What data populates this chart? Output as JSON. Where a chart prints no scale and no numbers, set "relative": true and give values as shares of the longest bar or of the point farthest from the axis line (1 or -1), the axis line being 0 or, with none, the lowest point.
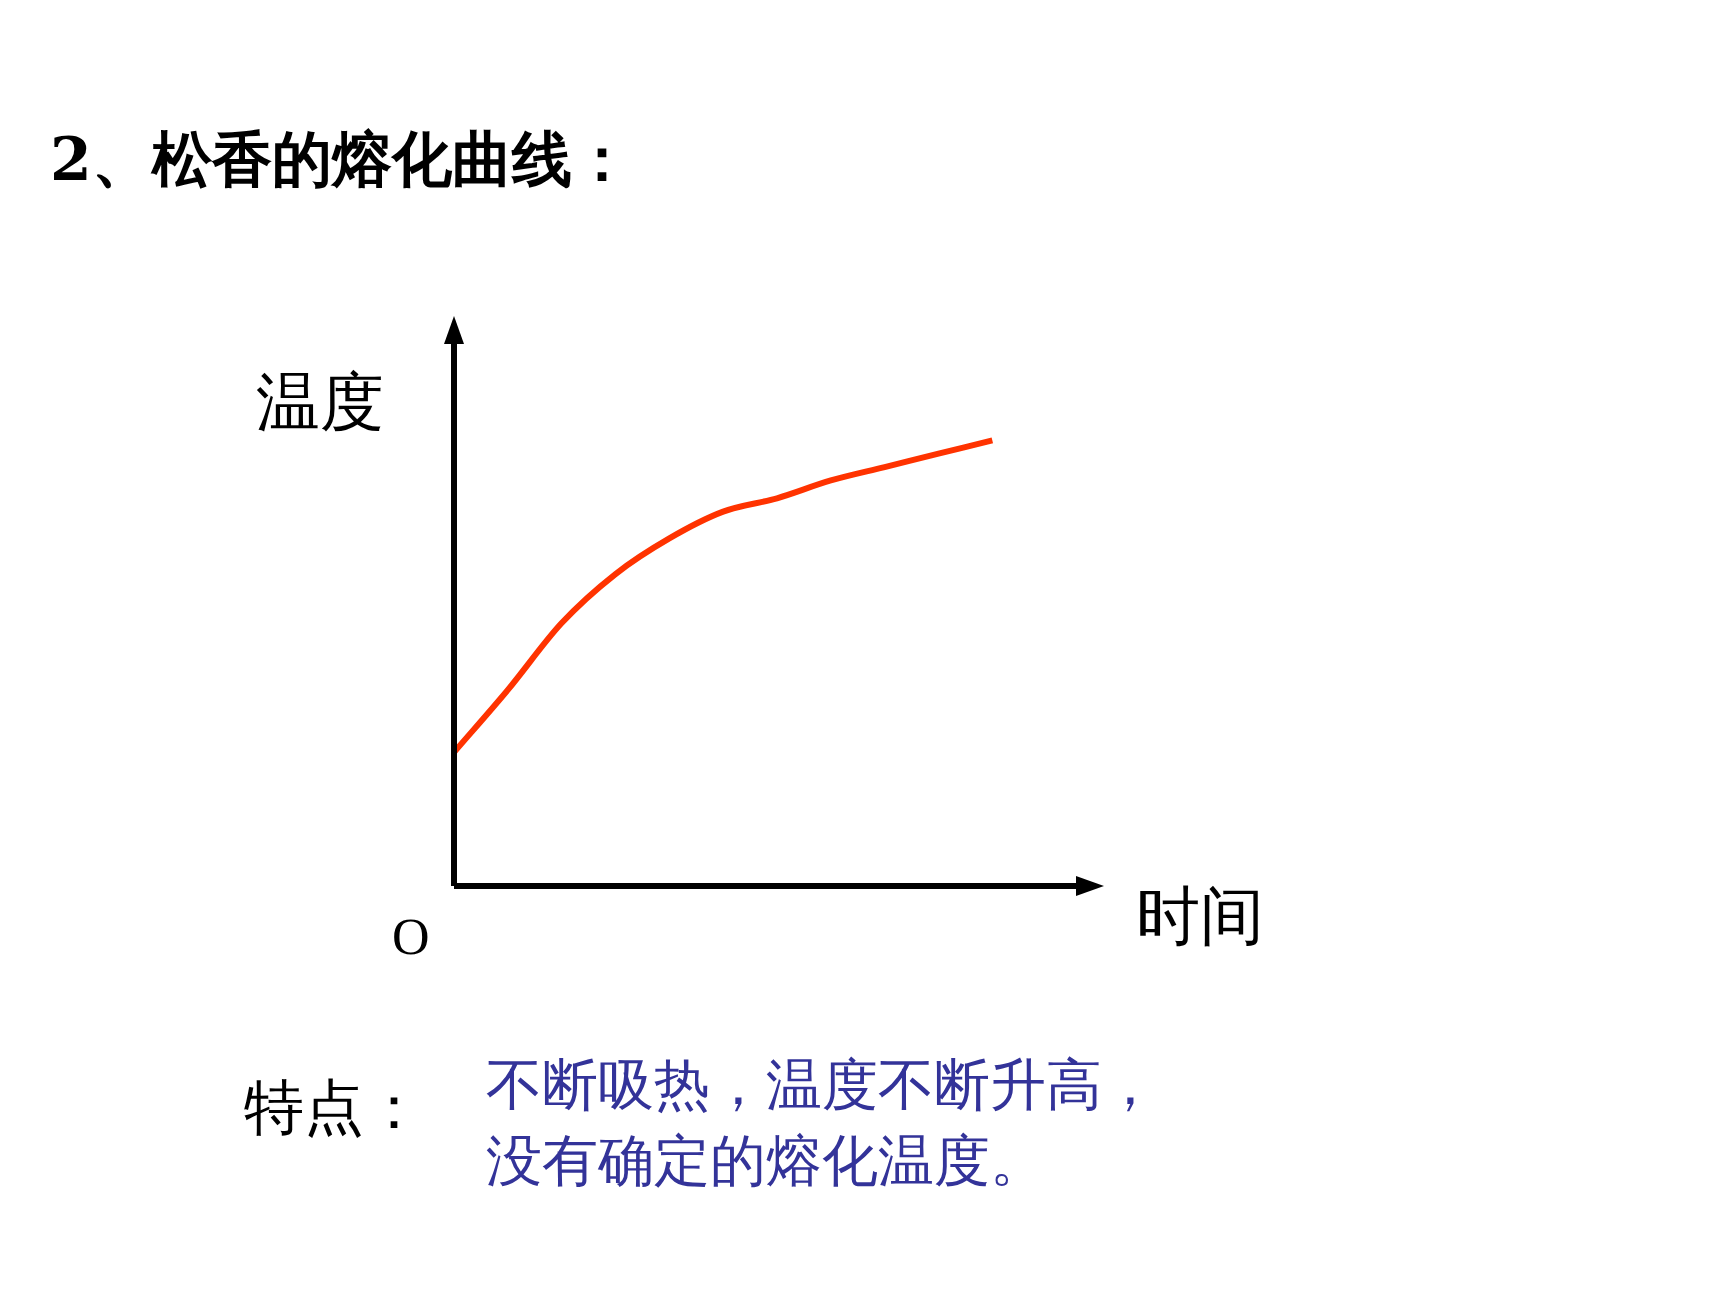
{
  "chart_data": {
    "type": "line",
    "title": "2、松香的熔化曲线：",
    "xlabel": "时间",
    "ylabel": "温度",
    "relative": true,
    "categories": [
      null,
      null,
      null,
      null,
      null,
      null,
      null,
      null,
      null,
      null,
      null,
      null,
      null
    ],
    "series": [
      {
        "color": "#ff3300",
        "values": [
          0.3,
          0.44,
          0.59,
          0.7,
          0.78,
          0.84,
          0.87,
          0.91,
          0.94,
          0.97,
          1.0,
          null,
          null
        ]
      }
    ],
    "marker": "none",
    "legend": false,
    "tick_labels": false,
    "annotations": [
      "O",
      "特点：",
      "不断吸热，温度不断升高，没有确定的熔化温度。"
    ]
  }
}
